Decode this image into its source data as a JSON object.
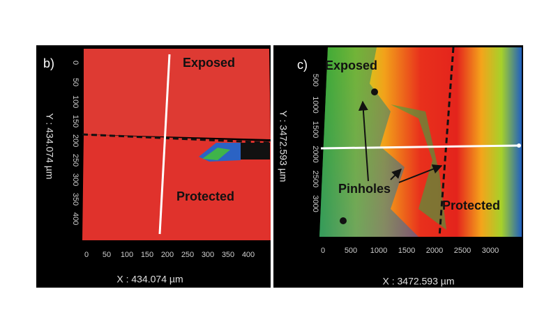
{
  "panels": [
    {
      "label": "b)",
      "annotations": [
        "Exposed",
        "Protected"
      ],
      "x_ticks": [
        0,
        50,
        100,
        150,
        200,
        250,
        300,
        350,
        400
      ],
      "y_ticks": [
        0,
        50,
        100,
        150,
        200,
        250,
        300,
        350,
        400
      ],
      "x_title": "X : 434.074 µm",
      "y_title": "Y : 434.074 µm"
    },
    {
      "label": "c)",
      "annotations": [
        "Exposed",
        "Pinholes",
        "Protected"
      ],
      "x_ticks": [
        0,
        500,
        1000,
        1500,
        2000,
        2500,
        3000
      ],
      "y_ticks": [
        500,
        1000,
        1500,
        2000,
        2500,
        3000
      ],
      "x_title": "X : 3472.593 µm",
      "y_title": "Y : 3472.593 µm"
    }
  ]
}
